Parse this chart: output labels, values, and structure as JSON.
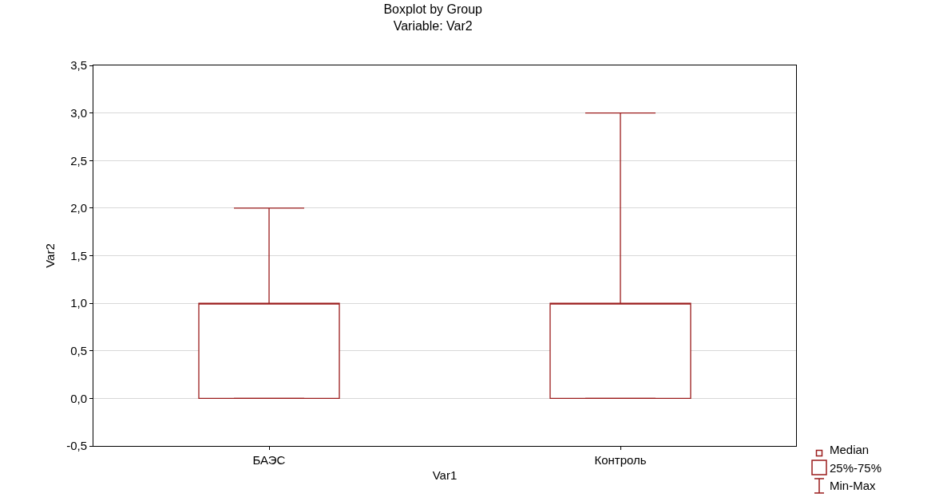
{
  "chart_data": {
    "type": "box",
    "title": "Boxplot by Group",
    "subtitle": "Variable: Var2",
    "xlabel": "Var1",
    "ylabel": "Var2",
    "categories": [
      "БАЭС",
      "Контроль"
    ],
    "boxes": [
      {
        "low": 0,
        "q1": 0,
        "median": 1,
        "q3": 1,
        "high": 2
      },
      {
        "low": 0,
        "q1": 0,
        "median": 1,
        "q3": 1,
        "high": 3
      }
    ],
    "color": "#9b1c1c",
    "ylim": [
      -0.5,
      3.5
    ],
    "yticks": [
      {
        "value": -0.5,
        "label": "-0,5"
      },
      {
        "value": 0,
        "label": "0,0"
      },
      {
        "value": 0.5,
        "label": "0,5"
      },
      {
        "value": 1,
        "label": "1,0"
      },
      {
        "value": 1.5,
        "label": "1,5"
      },
      {
        "value": 2,
        "label": "2,0"
      },
      {
        "value": 2.5,
        "label": "2,5"
      },
      {
        "value": 3,
        "label": "3,0"
      },
      {
        "value": 3.5,
        "label": "3,5"
      }
    ],
    "grid": "y",
    "annotations": [
      "Median",
      "25%-75%",
      "Min-Max"
    ]
  }
}
